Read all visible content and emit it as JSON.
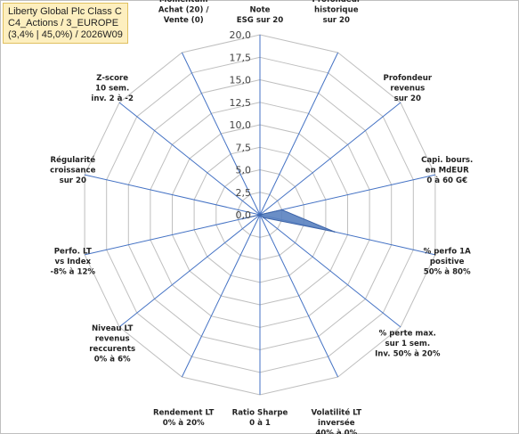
{
  "title_box": {
    "line1": "Liberty Global Plc Class C",
    "line2": "C4_Actions / 3_EUROPE",
    "line3": "(3,4% | 45,0%) / 2026W09"
  },
  "colors": {
    "series_fill": "#5a82c0",
    "series_stroke": "#3d64a8",
    "axis": "#4472c4",
    "grid": "#bfbfbf",
    "title_bg": "#fdefbf"
  },
  "chart_data": {
    "type": "radar",
    "r_range": [
      0,
      20
    ],
    "r_step": 2.5,
    "grid": true,
    "tick_labels": [
      "0,0",
      "2,5",
      "5,0",
      "7,5",
      "10,0",
      "12,5",
      "15,0",
      "17,5",
      "20,0"
    ],
    "axes": [
      [
        "Note",
        "ESG sur 20"
      ],
      [
        "Profondeur",
        "historique",
        "sur 20"
      ],
      [
        "Profondeur",
        "revenus",
        "sur 20"
      ],
      [
        "Capi. bours.",
        "en MdEUR",
        "0 à 60 G€"
      ],
      [
        "% perfo 1A",
        "positive",
        "50% à 80%"
      ],
      [
        "% perte max.",
        "sur 1 sem.",
        "Inv. 50% à 20%"
      ],
      [
        "Volatilité LT",
        "inversée",
        "40% à 0%"
      ],
      [
        "Ratio Sharpe",
        "0 à 1"
      ],
      [
        "Rendement LT",
        "0% à 20%"
      ],
      [
        "Niveau LT",
        "revenus",
        "reccurents",
        "0% à 6%"
      ],
      [
        "Perfo. LT",
        "vs Index",
        "-8% à 12%"
      ],
      [
        "Régularité",
        "croissance",
        "sur 20"
      ],
      [
        "Z-score",
        "10 sem.",
        "inv. 2 à -2"
      ],
      [
        "Momentum",
        "Achat (20) /",
        "Vente (0)"
      ]
    ],
    "series": [
      {
        "values": [
          0,
          0,
          0,
          2.5,
          8.5,
          0.5,
          0,
          0,
          0,
          0,
          2,
          0,
          0,
          0
        ]
      }
    ]
  }
}
